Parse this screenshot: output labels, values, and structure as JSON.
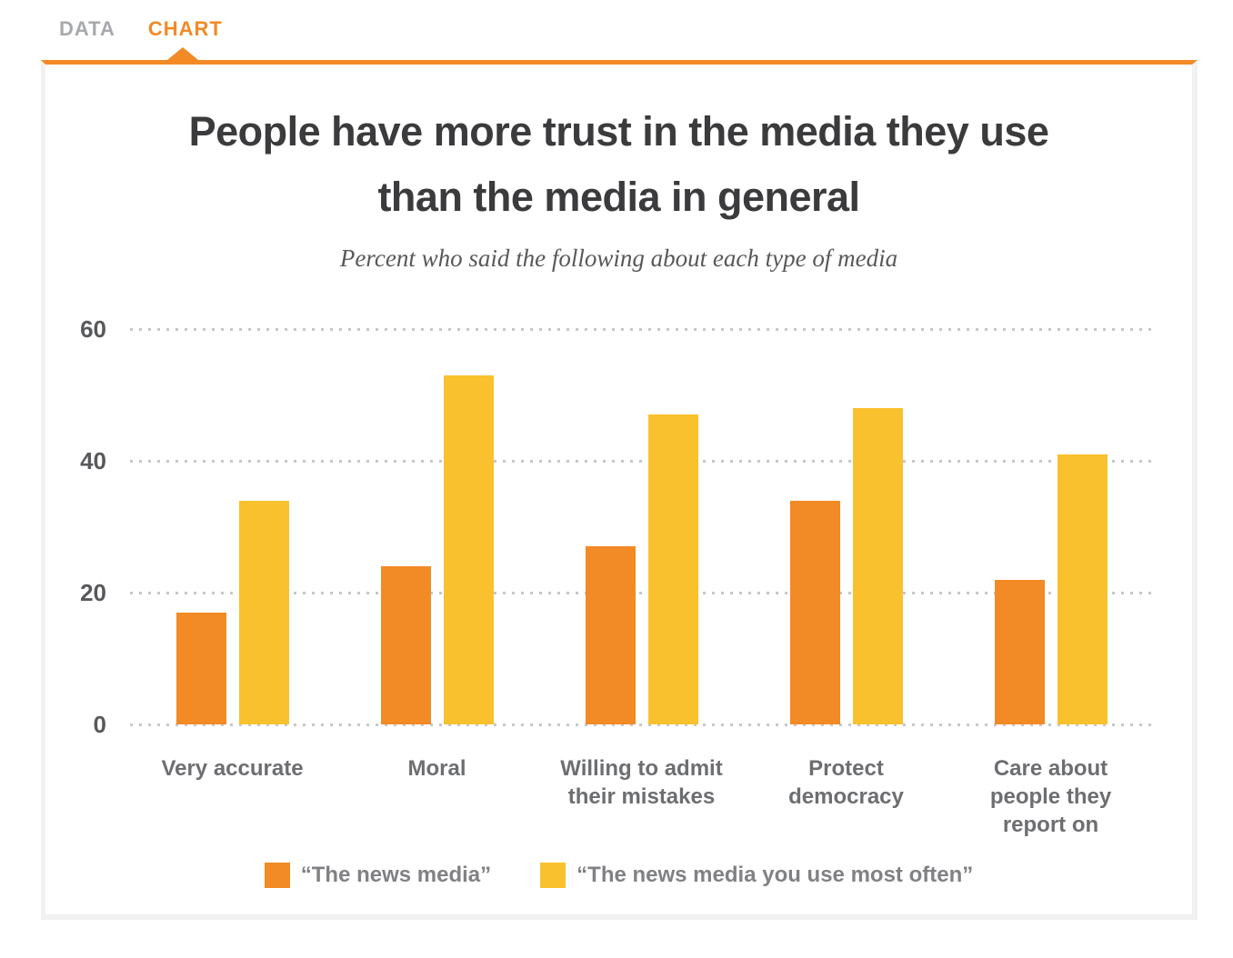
{
  "tabs": {
    "data_label": "DATA",
    "chart_label": "CHART"
  },
  "title": {
    "line1": "People have more trust in the media they use",
    "line2": "than the media in general"
  },
  "subtitle": "Percent who said the following about each type of media",
  "colors": {
    "accent_orange": "#F28A25",
    "tab_inactive_gray": "#A7A9AC",
    "grid_dot_gray": "#C6C7C8",
    "series_orange": "#F28A25",
    "series_yellow": "#FAC12E"
  },
  "chart_data": {
    "type": "bar",
    "categories": [
      "Very accurate",
      "Moral",
      "Willing to admit their mistakes",
      "Protect democracy",
      "Care about people they report on"
    ],
    "series": [
      {
        "name": "“The news media”",
        "color": "#F28A25",
        "values": [
          17,
          24,
          27,
          34,
          22
        ]
      },
      {
        "name": "“The news media you use most often”",
        "color": "#FAC12E",
        "values": [
          34,
          53,
          47,
          48,
          41
        ]
      }
    ],
    "title": "People have more trust in the media they use than the media in general",
    "subtitle": "Percent who said the following about each type of media",
    "xlabel": "",
    "ylabel": "",
    "ylim": [
      0,
      60
    ],
    "yticks": [
      60,
      40,
      20,
      0
    ],
    "grid": "horizontal-dotted",
    "legend_position": "bottom"
  }
}
